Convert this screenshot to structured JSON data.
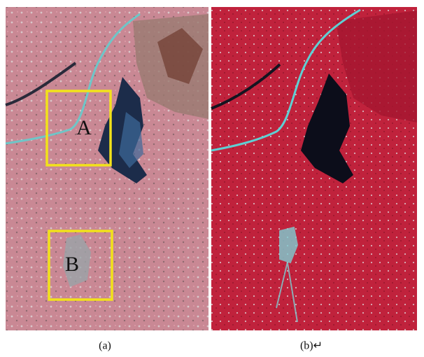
{
  "panels": [
    {
      "caption": "(a)",
      "regions": [
        {
          "label": "A"
        },
        {
          "label": "B"
        }
      ]
    },
    {
      "caption": "(b)↵"
    }
  ]
}
